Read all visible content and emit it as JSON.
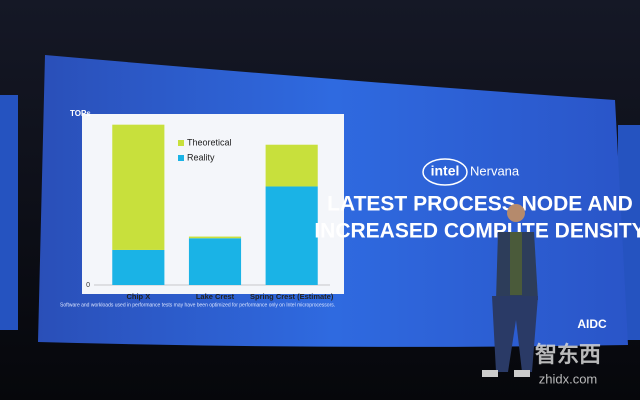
{
  "chart_data": {
    "type": "bar",
    "stacked": true,
    "y_label": "TOPs",
    "categories": [
      "Chip X",
      "Lake Crest",
      "Spring Crest (Estimate)"
    ],
    "series": [
      {
        "name": "Reality",
        "color": "#1ab3e6",
        "values": [
          21,
          28,
          59
        ]
      },
      {
        "name": "Theoretical",
        "color": "#c8e03c",
        "values": [
          75,
          1,
          25
        ]
      }
    ],
    "ylim": [
      0,
      100
    ],
    "yticks": [
      0
    ],
    "legend": "top-right"
  },
  "slide": {
    "brand_logo": "intel",
    "brand": "Nervana",
    "headline": [
      "LATEST PROCESS NODE AND",
      "INCREASED COMPUTE DENSITY"
    ],
    "footnote": [
      "Software and workloads used in performance tests may have been optimized for performance only on Intel microprocessors."
    ],
    "event": "AIDC"
  },
  "watermark": {
    "name": "智东西",
    "url": "zhidx.com"
  }
}
